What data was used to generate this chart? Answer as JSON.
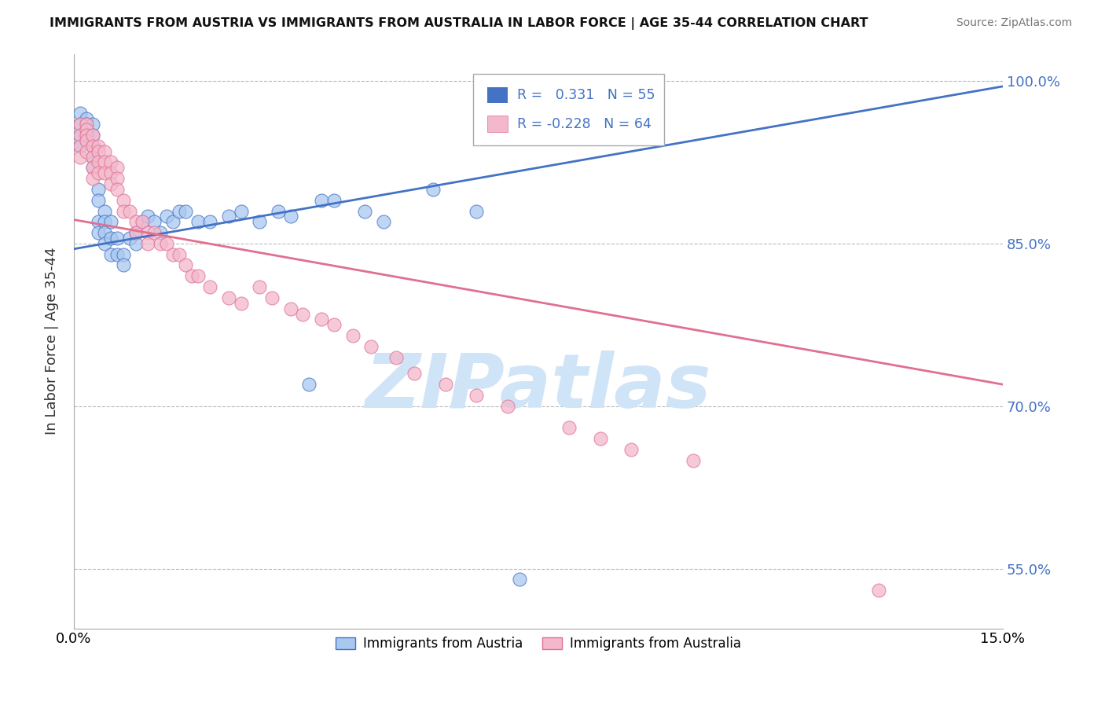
{
  "title": "IMMIGRANTS FROM AUSTRIA VS IMMIGRANTS FROM AUSTRALIA IN LABOR FORCE | AGE 35-44 CORRELATION CHART",
  "source": "Source: ZipAtlas.com",
  "ylabel": "In Labor Force | Age 35-44",
  "xlim": [
    0.0,
    0.15
  ],
  "ylim": [
    0.495,
    1.025
  ],
  "ytick_vals": [
    0.55,
    0.7,
    0.85,
    1.0
  ],
  "ytick_labels": [
    "55.0%",
    "70.0%",
    "85.0%",
    "100.0%"
  ],
  "xtick_vals": [
    0.0,
    0.15
  ],
  "xtick_labels": [
    "0.0%",
    "15.0%"
  ],
  "legend_austria": "Immigrants from Austria",
  "legend_australia": "Immigrants from Australia",
  "R_austria": 0.331,
  "N_austria": 55,
  "R_australia": -0.228,
  "N_australia": 64,
  "color_austria": "#a8c8f0",
  "color_australia": "#f4b8cc",
  "line_color_austria": "#4472c4",
  "line_color_australia": "#e07090",
  "watermark": "ZIPatlas",
  "watermark_color": "#d0e4f8",
  "austria_trend_x": [
    0.0,
    0.15
  ],
  "austria_trend_y": [
    0.845,
    0.995
  ],
  "australia_trend_x": [
    0.0,
    0.15
  ],
  "australia_trend_y": [
    0.872,
    0.72
  ],
  "austria_x": [
    0.001,
    0.001,
    0.001,
    0.001,
    0.002,
    0.002,
    0.002,
    0.002,
    0.002,
    0.003,
    0.003,
    0.003,
    0.003,
    0.003,
    0.004,
    0.004,
    0.004,
    0.004,
    0.005,
    0.005,
    0.005,
    0.005,
    0.006,
    0.006,
    0.006,
    0.007,
    0.007,
    0.008,
    0.008,
    0.009,
    0.01,
    0.01,
    0.011,
    0.012,
    0.013,
    0.014,
    0.015,
    0.016,
    0.017,
    0.018,
    0.02,
    0.022,
    0.025,
    0.027,
    0.03,
    0.033,
    0.035,
    0.038,
    0.04,
    0.042,
    0.047,
    0.05,
    0.058,
    0.065,
    0.072
  ],
  "austria_y": [
    0.97,
    0.96,
    0.95,
    0.94,
    0.965,
    0.96,
    0.955,
    0.95,
    0.945,
    0.96,
    0.95,
    0.94,
    0.93,
    0.92,
    0.9,
    0.89,
    0.87,
    0.86,
    0.88,
    0.87,
    0.86,
    0.85,
    0.87,
    0.855,
    0.84,
    0.855,
    0.84,
    0.84,
    0.83,
    0.855,
    0.86,
    0.85,
    0.87,
    0.875,
    0.87,
    0.86,
    0.875,
    0.87,
    0.88,
    0.88,
    0.87,
    0.87,
    0.875,
    0.88,
    0.87,
    0.88,
    0.875,
    0.72,
    0.89,
    0.89,
    0.88,
    0.87,
    0.9,
    0.88,
    0.54
  ],
  "australia_x": [
    0.001,
    0.001,
    0.001,
    0.001,
    0.002,
    0.002,
    0.002,
    0.002,
    0.002,
    0.003,
    0.003,
    0.003,
    0.003,
    0.003,
    0.004,
    0.004,
    0.004,
    0.004,
    0.005,
    0.005,
    0.005,
    0.006,
    0.006,
    0.006,
    0.007,
    0.007,
    0.007,
    0.008,
    0.008,
    0.009,
    0.01,
    0.01,
    0.011,
    0.012,
    0.012,
    0.013,
    0.014,
    0.015,
    0.016,
    0.017,
    0.018,
    0.019,
    0.02,
    0.022,
    0.025,
    0.027,
    0.03,
    0.032,
    0.035,
    0.037,
    0.04,
    0.042,
    0.045,
    0.048,
    0.052,
    0.055,
    0.06,
    0.065,
    0.07,
    0.08,
    0.085,
    0.09,
    0.1,
    0.13
  ],
  "australia_y": [
    0.96,
    0.95,
    0.94,
    0.93,
    0.96,
    0.955,
    0.95,
    0.945,
    0.935,
    0.95,
    0.94,
    0.93,
    0.92,
    0.91,
    0.94,
    0.935,
    0.925,
    0.915,
    0.935,
    0.925,
    0.915,
    0.925,
    0.915,
    0.905,
    0.92,
    0.91,
    0.9,
    0.89,
    0.88,
    0.88,
    0.87,
    0.86,
    0.87,
    0.86,
    0.85,
    0.86,
    0.85,
    0.85,
    0.84,
    0.84,
    0.83,
    0.82,
    0.82,
    0.81,
    0.8,
    0.795,
    0.81,
    0.8,
    0.79,
    0.785,
    0.78,
    0.775,
    0.765,
    0.755,
    0.745,
    0.73,
    0.72,
    0.71,
    0.7,
    0.68,
    0.67,
    0.66,
    0.65,
    0.53
  ]
}
